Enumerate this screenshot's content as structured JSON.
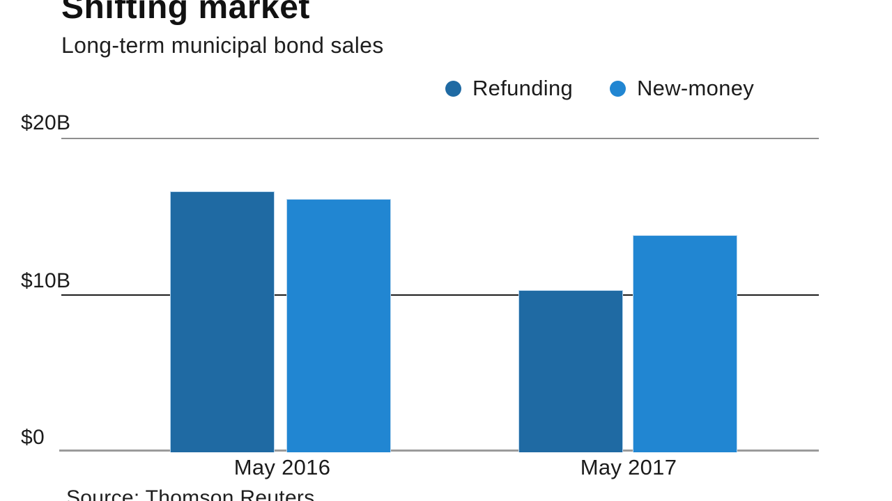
{
  "header": {
    "title": "Shifting market",
    "subtitle": "Long-term municipal bond sales"
  },
  "chart_data": {
    "type": "bar",
    "title": "Shifting market",
    "subtitle": "Long-term municipal bond sales",
    "categories": [
      "May 2016",
      "May 2017"
    ],
    "series": [
      {
        "name": "Refunding",
        "color": "#1f6aa3",
        "values": [
          16.7,
          10.4
        ]
      },
      {
        "name": "New-money",
        "color": "#2186d2",
        "values": [
          16.2,
          13.9
        ]
      }
    ],
    "yticks": [
      "$20B",
      "$10B",
      "$0"
    ],
    "ylim": [
      0,
      20
    ],
    "value_unit": "$B",
    "legend_position": "top-right",
    "grid": true
  },
  "colors": {
    "refunding": "#1f6aa3",
    "new_money": "#2186d2",
    "gridline_gray": "#8e8e8e",
    "gridline_dark": "#1c1c1c",
    "axis_gray": "#9b9b9b"
  },
  "source": "Source: Thomson Reuters"
}
